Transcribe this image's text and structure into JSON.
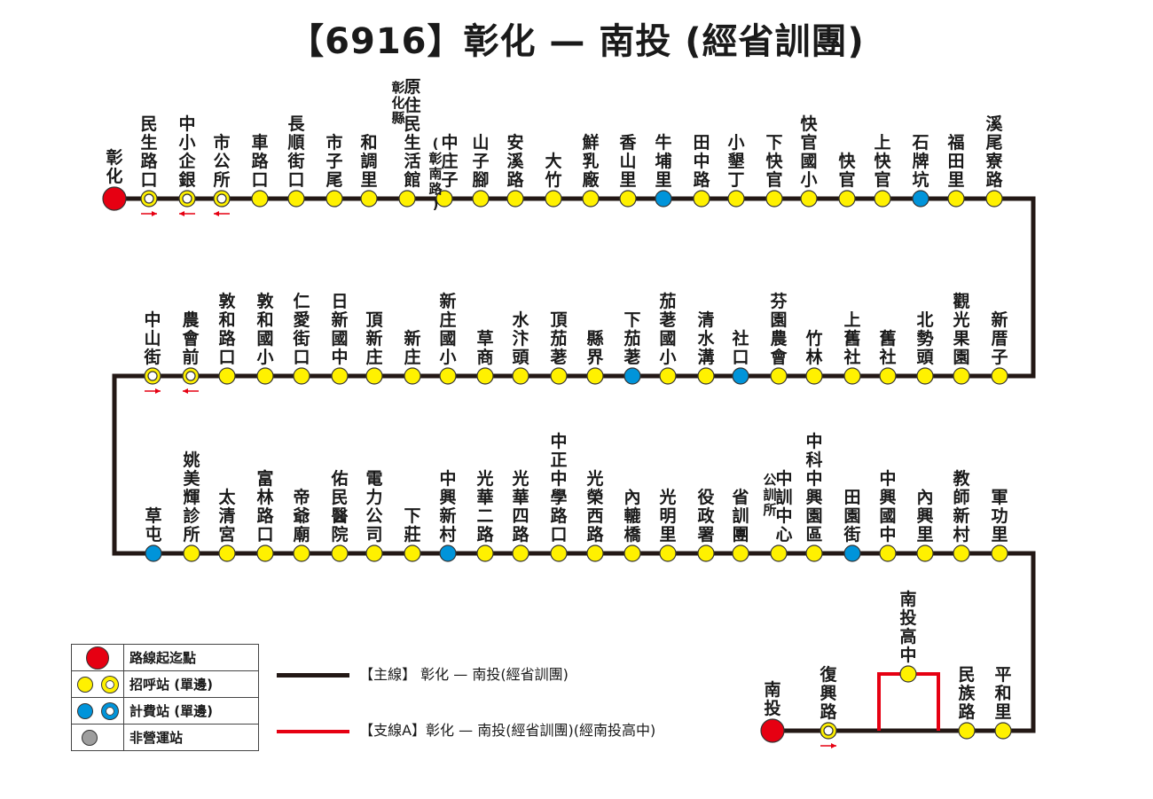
{
  "title": "【6916】彰化 — 南投 (經省訓團)",
  "colors": {
    "line_main": "#231815",
    "line_branch": "#e60012",
    "terminal": "#e60012",
    "stop": "#fff100",
    "fare": "#0094da",
    "inactive": "#9e9e9e",
    "arrow": "#e60012"
  },
  "rows": [
    {
      "stops": [
        {
          "name": "彰化",
          "type": "terminal"
        },
        {
          "name": "民生路口",
          "type": "stop-single",
          "arrow": "right"
        },
        {
          "name": "中小企銀",
          "type": "stop-single",
          "arrow": "left"
        },
        {
          "name": "市公所",
          "type": "stop-single",
          "arrow": "left"
        },
        {
          "name": "車路口",
          "type": "stop"
        },
        {
          "name": "長順街口",
          "type": "stop"
        },
        {
          "name": "市子尾",
          "type": "stop"
        },
        {
          "name": "和調里",
          "type": "stop"
        },
        {
          "name": "原住民生活館",
          "sub": "彰化縣",
          "type": "stop"
        },
        {
          "name": "中庄子",
          "sub": "(彰南路)",
          "type": "stop"
        },
        {
          "name": "山子腳",
          "type": "stop"
        },
        {
          "name": "安溪路",
          "type": "stop"
        },
        {
          "name": "大竹",
          "type": "stop"
        },
        {
          "name": "鮮乳廠",
          "type": "stop"
        },
        {
          "name": "香山里",
          "type": "stop"
        },
        {
          "name": "牛埔里",
          "type": "fare"
        },
        {
          "name": "田中路",
          "type": "stop"
        },
        {
          "name": "小墾丁",
          "type": "stop"
        },
        {
          "name": "下快官",
          "type": "stop"
        },
        {
          "name": "快官國小",
          "type": "stop"
        },
        {
          "name": "快官",
          "type": "stop"
        },
        {
          "name": "上快官",
          "type": "stop"
        },
        {
          "name": "石牌坑",
          "type": "fare"
        },
        {
          "name": "福田里",
          "type": "stop"
        },
        {
          "name": "溪尾寮路",
          "type": "stop"
        }
      ]
    },
    {
      "stops": [
        {
          "name": "中山街",
          "type": "stop-single",
          "arrow": "right"
        },
        {
          "name": "農會前",
          "type": "stop-single",
          "arrow": "left"
        },
        {
          "name": "敦和路口",
          "type": "stop"
        },
        {
          "name": "敦和國小",
          "type": "stop"
        },
        {
          "name": "仁愛街口",
          "type": "stop"
        },
        {
          "name": "日新國中",
          "type": "stop"
        },
        {
          "name": "頂新庄",
          "type": "stop"
        },
        {
          "name": "新庄",
          "type": "stop"
        },
        {
          "name": "新庄國小",
          "type": "stop"
        },
        {
          "name": "草商",
          "type": "stop"
        },
        {
          "name": "水汴頭",
          "type": "stop"
        },
        {
          "name": "頂茄荖",
          "type": "stop"
        },
        {
          "name": "縣界",
          "type": "stop"
        },
        {
          "name": "下茄荖",
          "type": "fare"
        },
        {
          "name": "茄荖國小",
          "type": "stop"
        },
        {
          "name": "清水溝",
          "type": "stop"
        },
        {
          "name": "社口",
          "type": "fare"
        },
        {
          "name": "芬園農會",
          "type": "stop"
        },
        {
          "name": "竹林",
          "type": "stop"
        },
        {
          "name": "上舊社",
          "type": "stop"
        },
        {
          "name": "舊社",
          "type": "stop"
        },
        {
          "name": "北勢頭",
          "type": "stop"
        },
        {
          "name": "觀光果園",
          "type": "stop"
        },
        {
          "name": "新厝子",
          "type": "stop"
        }
      ]
    },
    {
      "stops": [
        {
          "name": "草屯",
          "type": "fare"
        },
        {
          "name": "姚美輝診所",
          "type": "stop"
        },
        {
          "name": "太清宮",
          "type": "stop"
        },
        {
          "name": "富林路口",
          "type": "stop"
        },
        {
          "name": "帝爺廟",
          "type": "stop"
        },
        {
          "name": "佑民醫院",
          "type": "stop"
        },
        {
          "name": "電力公司",
          "type": "stop"
        },
        {
          "name": "下莊",
          "type": "stop"
        },
        {
          "name": "中興新村",
          "type": "fare"
        },
        {
          "name": "光華二路",
          "type": "stop"
        },
        {
          "name": "光華四路",
          "type": "stop"
        },
        {
          "name": "中正中學路口",
          "type": "stop"
        },
        {
          "name": "光榮西路",
          "type": "stop"
        },
        {
          "name": "內轆橋",
          "type": "stop"
        },
        {
          "name": "光明里",
          "type": "stop"
        },
        {
          "name": "役政署",
          "type": "stop"
        },
        {
          "name": "省訓團",
          "type": "stop"
        },
        {
          "name": "中訓中心",
          "sub": "公訓所",
          "type": "stop"
        },
        {
          "name": "中科中興園區",
          "type": "stop"
        },
        {
          "name": "田園街",
          "type": "fare"
        },
        {
          "name": "中興國中",
          "type": "stop"
        },
        {
          "name": "內興里",
          "type": "stop"
        },
        {
          "name": "教師新村",
          "type": "stop"
        },
        {
          "name": "軍功里",
          "type": "stop"
        }
      ]
    },
    {
      "stops": [
        {
          "name": "南投",
          "type": "terminal"
        },
        {
          "name": "復興路",
          "type": "stop-single",
          "arrow": "right"
        },
        {
          "name": "南投高中",
          "type": "stop",
          "branch": true
        },
        {
          "name": "民族路",
          "type": "stop"
        },
        {
          "name": "平和里",
          "type": "stop"
        }
      ]
    }
  ],
  "legend": {
    "terminal_label": "路線起迄點",
    "stop_label": "招呼站 (單邊)",
    "fare_label": "計費站 (單邊)",
    "inactive_label": "非營運站"
  },
  "lines": {
    "main_label": "【主線】 彰化 — 南投(經省訓團)",
    "branch_label": "【支線A】彰化 — 南投(經省訓團)(經南投高中)"
  }
}
